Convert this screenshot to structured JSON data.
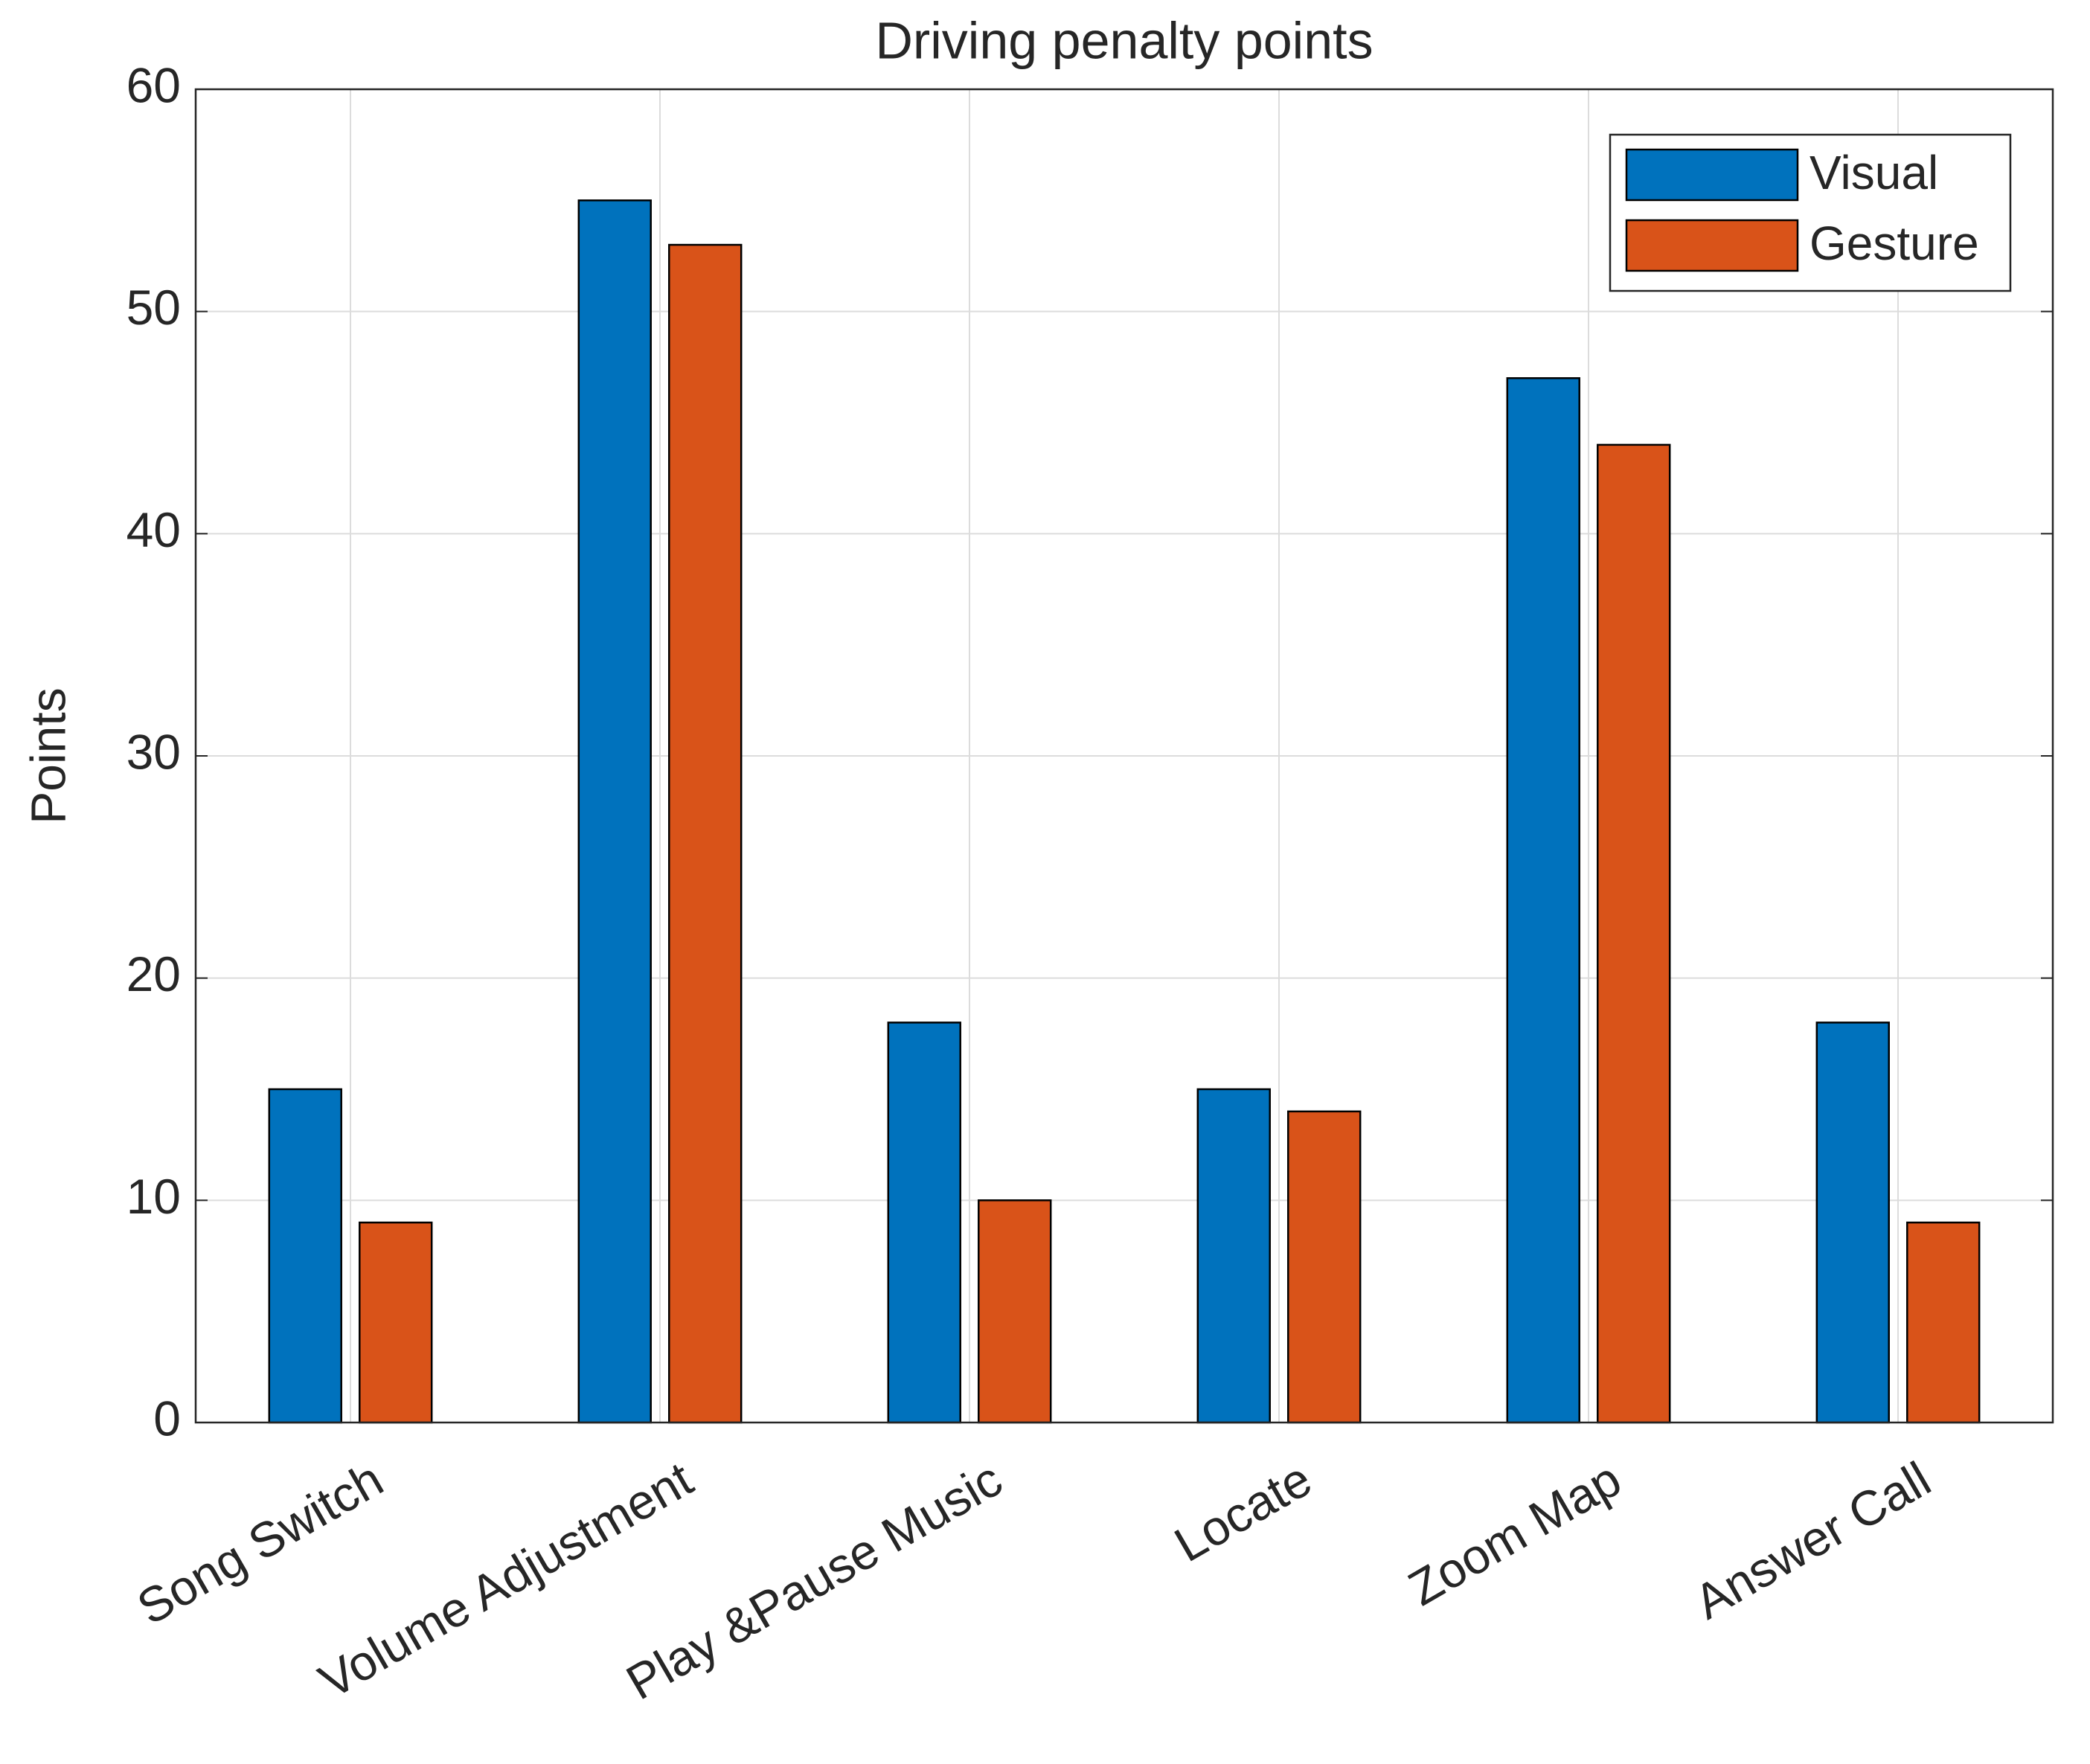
{
  "chart_data": {
    "type": "bar",
    "title": "Driving penalty points",
    "ylabel": "Points",
    "categories": [
      "Song Switch",
      "Volume Adjustment",
      "Play &Pause Music",
      "Locate",
      "Zoom Map",
      "Answer Call"
    ],
    "series": [
      {
        "name": "Visual",
        "color": "#0072bd",
        "values": [
          15,
          55,
          18,
          15,
          47,
          18
        ]
      },
      {
        "name": "Gesture",
        "color": "#d95319",
        "values": [
          9,
          53,
          10,
          14,
          44,
          9
        ]
      }
    ],
    "ylim": [
      0,
      60
    ],
    "yticks": [
      0,
      10,
      20,
      30,
      40,
      50,
      60
    ],
    "grid": true,
    "legend": "upper right"
  }
}
